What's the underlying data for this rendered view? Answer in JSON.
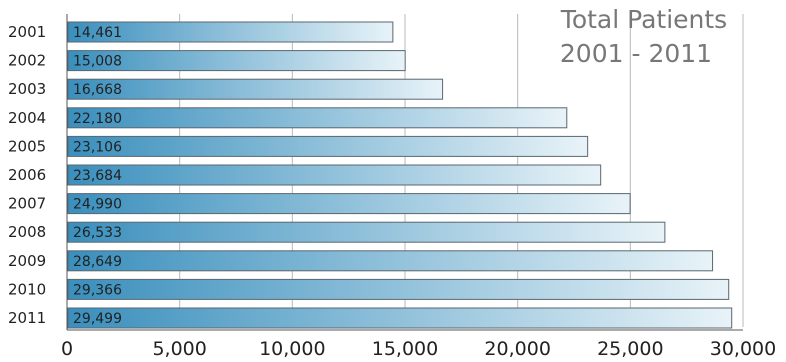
{
  "chart_data": {
    "type": "bar",
    "orientation": "horizontal",
    "title": "Total Patients",
    "subtitle": "2001 - 2011",
    "categories": [
      "2001",
      "2002",
      "2003",
      "2004",
      "2005",
      "2006",
      "2007",
      "2008",
      "2009",
      "2010",
      "2011"
    ],
    "values": [
      14461,
      15008,
      16668,
      22180,
      23106,
      23684,
      24990,
      26533,
      28649,
      29366,
      29499
    ],
    "value_labels": [
      "14,461",
      "15,008",
      "16,668",
      "22,180",
      "23,106",
      "23,684",
      "24,990",
      "26,533",
      "28,649",
      "29,366",
      "29,499"
    ],
    "xlim": [
      0,
      30000
    ],
    "xticks": [
      0,
      5000,
      10000,
      15000,
      20000,
      25000,
      30000
    ],
    "xtick_labels": [
      "0",
      "5,000",
      "10,000",
      "15,000",
      "20,000",
      "25,000",
      "30,000"
    ],
    "grid": true,
    "legend": "none",
    "colors": {
      "bar_start": "#3a8fbd",
      "bar_end": "#e8f3f8",
      "bar_border": "#5a6770",
      "grid": "#b8b8b8",
      "axis": "#555555",
      "title": "#777777"
    }
  }
}
